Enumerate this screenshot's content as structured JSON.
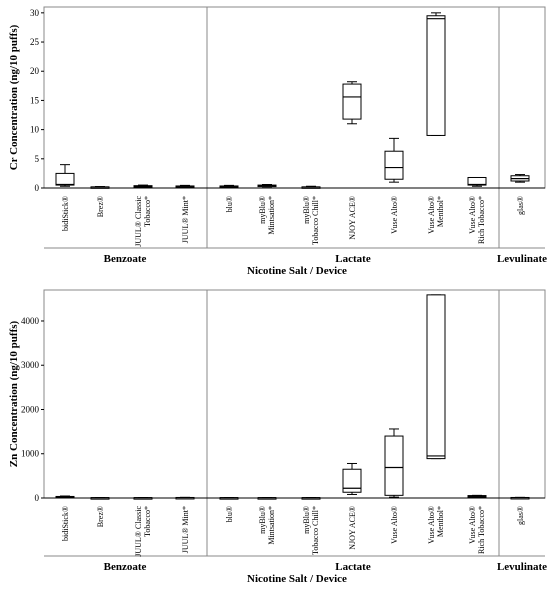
{
  "chart_data": [
    {
      "type": "box",
      "ylabel": "Cr Concentration (ng/10 puffs)",
      "xlabel": "Nicotine Salt / Device",
      "ylim": [
        0,
        31
      ],
      "yticks": [
        0,
        5,
        10,
        15,
        20,
        25,
        30
      ],
      "groups": [
        "Benzoate",
        "Lactate",
        "Levulinate"
      ],
      "categories": [
        [
          "bidiStick®"
        ],
        [
          "Brez®"
        ],
        [
          "JUUL® Classic",
          "Tobacco*"
        ],
        [
          "JUUL® Mint*"
        ],
        [
          "blu®"
        ],
        [
          "myBlu®",
          "Mintsation*"
        ],
        [
          "myBlu®",
          "Tobacco Chill*"
        ],
        [
          "NJOY ACE®"
        ],
        [
          "Vuse Alto®"
        ],
        [
          "Vuse Alto®",
          "Menthol*"
        ],
        [
          "Vuse Alto®",
          "Rich Tobacco*"
        ],
        [
          "glas®"
        ]
      ],
      "category_groups": [
        "Benzoate",
        "Benzoate",
        "Benzoate",
        "Benzoate",
        "Lactate",
        "Lactate",
        "Lactate",
        "Lactate",
        "Lactate",
        "Lactate",
        "Lactate",
        "Levulinate"
      ],
      "boxes": [
        {
          "min": 0.3,
          "q1": 0.5,
          "median": 0.6,
          "q3": 2.5,
          "max": 4.0
        },
        {
          "min": 0.05,
          "q1": 0.1,
          "median": 0.15,
          "q3": 0.2,
          "max": 0.25
        },
        {
          "min": 0.1,
          "q1": 0.15,
          "median": 0.25,
          "q3": 0.4,
          "max": 0.5
        },
        {
          "min": 0.1,
          "q1": 0.15,
          "median": 0.2,
          "q3": 0.35,
          "max": 0.45
        },
        {
          "min": 0.05,
          "q1": 0.1,
          "median": 0.2,
          "q3": 0.35,
          "max": 0.45
        },
        {
          "min": 0.2,
          "q1": 0.3,
          "median": 0.4,
          "q3": 0.5,
          "max": 0.6
        },
        {
          "min": 0.05,
          "q1": 0.1,
          "median": 0.15,
          "q3": 0.2,
          "max": 0.3
        },
        {
          "min": 11.0,
          "q1": 11.8,
          "median": 15.6,
          "q3": 17.8,
          "max": 18.2
        },
        {
          "min": 1.0,
          "q1": 1.5,
          "median": 3.5,
          "q3": 6.3,
          "max": 8.5
        },
        {
          "min": 9.0,
          "q1": 9.0,
          "median": 29.0,
          "q3": 29.5,
          "max": 30.0
        },
        {
          "min": 0.3,
          "q1": 0.5,
          "median": 0.6,
          "q3": 1.8,
          "max": 1.8
        },
        {
          "min": 1.0,
          "q1": 1.2,
          "median": 1.6,
          "q3": 2.1,
          "max": 2.3
        }
      ]
    },
    {
      "type": "box",
      "ylabel": "Zn Concentration (ng/10 puffs)",
      "xlabel": "Nicotine Salt / Device",
      "ylim": [
        0,
        4700
      ],
      "yticks": [
        0,
        1000,
        2000,
        3000,
        4000
      ],
      "groups": [
        "Benzoate",
        "Lactate",
        "Levulinate"
      ],
      "categories": [
        [
          "bidiStick®"
        ],
        [
          "Brez®"
        ],
        [
          "JUUL® Classic",
          "Tobacco*"
        ],
        [
          "JUUL® Mint*"
        ],
        [
          "blu®"
        ],
        [
          "myBlu®",
          "Mintsation*"
        ],
        [
          "myBlu®",
          "Tobacco Chill*"
        ],
        [
          "NJOY ACE®"
        ],
        [
          "Vuse Alto®"
        ],
        [
          "Vuse Alto®",
          "Menthol*"
        ],
        [
          "Vuse Alto®",
          "Rich Tobacco*"
        ],
        [
          "glas®"
        ]
      ],
      "category_groups": [
        "Benzoate",
        "Benzoate",
        "Benzoate",
        "Benzoate",
        "Lactate",
        "Lactate",
        "Lactate",
        "Lactate",
        "Lactate",
        "Lactate",
        "Lactate",
        "Levulinate"
      ],
      "boxes": [
        {
          "min": 5,
          "q1": 10,
          "median": 20,
          "q3": 35,
          "max": 45
        },
        {
          "min": 2,
          "q1": 3,
          "median": 5,
          "q3": 8,
          "max": 10
        },
        {
          "min": 2,
          "q1": 3,
          "median": 5,
          "q3": 8,
          "max": 10
        },
        {
          "min": 3,
          "q1": 5,
          "median": 8,
          "q3": 12,
          "max": 15
        },
        {
          "min": 2,
          "q1": 3,
          "median": 5,
          "q3": 8,
          "max": 10
        },
        {
          "min": 2,
          "q1": 3,
          "median": 5,
          "q3": 8,
          "max": 10
        },
        {
          "min": 2,
          "q1": 3,
          "median": 5,
          "q3": 8,
          "max": 10
        },
        {
          "min": 80,
          "q1": 130,
          "median": 220,
          "q3": 650,
          "max": 780
        },
        {
          "min": 20,
          "q1": 60,
          "median": 690,
          "q3": 1400,
          "max": 1560
        },
        {
          "min": 890,
          "q1": 890,
          "median": 950,
          "q3": 4590,
          "max": 4590
        },
        {
          "min": 20,
          "q1": 30,
          "median": 40,
          "q3": 55,
          "max": 60
        },
        {
          "min": 3,
          "q1": 5,
          "median": 8,
          "q3": 12,
          "max": 15
        }
      ]
    }
  ]
}
